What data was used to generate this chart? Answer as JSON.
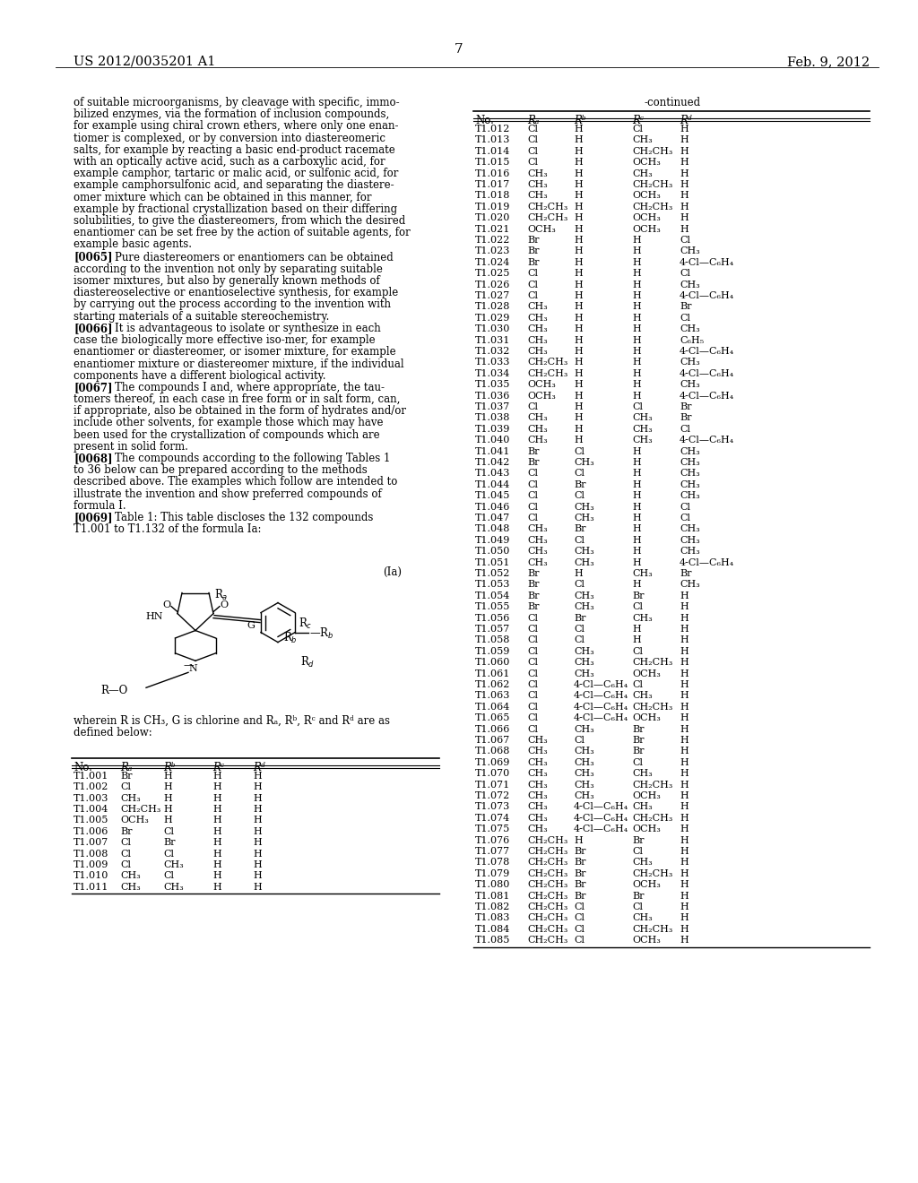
{
  "page_header_left": "US 2012/0035201 A1",
  "page_header_right": "Feb. 9, 2012",
  "page_number": "7",
  "background_color": "#ffffff",
  "body_text_lines": [
    "of suitable microorganisms, by cleavage with specific, immo-",
    "bilized enzymes, via the formation of inclusion compounds,",
    "for example using chiral crown ethers, where only one enan-",
    "tiomer is complexed, or by conversion into diastereomeric",
    "salts, for example by reacting a basic end-product racemate",
    "with an optically active acid, such as a carboxylic acid, for",
    "example camphor, tartaric or malic acid, or sulfonic acid, for",
    "example camphorsulfonic acid, and separating the diastere-",
    "omer mixture which can be obtained in this manner, for",
    "example by fractional crystallization based on their differing",
    "solubilities, to give the diastereomers, from which the desired",
    "enantiomer can be set free by the action of suitable agents, for",
    "example basic agents."
  ],
  "para_0065_lines": [
    "[0065]    Pure diastereomers or enantiomers can be obtained",
    "according to the invention not only by separating suitable",
    "isomer mixtures, but also by generally known methods of",
    "diastereoselective or enantioselective synthesis, for example",
    "by carrying out the process according to the invention with",
    "starting materials of a suitable stereochemistry."
  ],
  "para_0066_lines": [
    "[0066]    It is advantageous to isolate or synthesize in each",
    "case the biologically more effective iso-mer, for example",
    "enantiomer or diastereomer, or isomer mixture, for example",
    "enantiomer mixture or diastereomer mixture, if the individual",
    "components have a different biological activity."
  ],
  "para_0067_lines": [
    "[0067]    The compounds I and, where appropriate, the tau-",
    "tomers thereof, in each case in free form or in salt form, can,",
    "if appropriate, also be obtained in the form of hydrates and/or",
    "include other solvents, for example those which may have",
    "been used for the crystallization of compounds which are",
    "present in solid form."
  ],
  "para_0068_lines": [
    "[0068]    The compounds according to the following Tables 1",
    "to 36 below can be prepared according to the methods",
    "described above. The examples which follow are intended to",
    "illustrate the invention and show preferred compounds of",
    "formula I."
  ],
  "para_0069_lines": [
    "[0069]    Table 1: This table discloses the 132 compounds",
    "T1.001 to T1.132 of the formula Ia:"
  ],
  "formula_label": "(Ia)",
  "formula_desc_lines": [
    "wherein R is CH₃, G is chlorine and Rₐ, Rᵇ, Rᶜ and Rᵈ are as",
    "defined below:"
  ],
  "table_header": [
    "No.",
    "Rₐ",
    "Rᵇ",
    "Rᶜ",
    "Rᵈ"
  ],
  "table_continued_header": "-continued",
  "left_table_rows": [
    [
      "T1.001",
      "Br",
      "H",
      "H",
      "H"
    ],
    [
      "T1.002",
      "Cl",
      "H",
      "H",
      "H"
    ],
    [
      "T1.003",
      "CH₃",
      "H",
      "H",
      "H"
    ],
    [
      "T1.004",
      "CH₂CH₃",
      "H",
      "H",
      "H"
    ],
    [
      "T1.005",
      "OCH₃",
      "H",
      "H",
      "H"
    ],
    [
      "T1.006",
      "Br",
      "Cl",
      "H",
      "H"
    ],
    [
      "T1.007",
      "Cl",
      "Br",
      "H",
      "H"
    ],
    [
      "T1.008",
      "Cl",
      "Cl",
      "H",
      "H"
    ],
    [
      "T1.009",
      "Cl",
      "CH₃",
      "H",
      "H"
    ],
    [
      "T1.010",
      "CH₃",
      "Cl",
      "H",
      "H"
    ],
    [
      "T1.011",
      "CH₃",
      "CH₃",
      "H",
      "H"
    ]
  ],
  "right_table_rows": [
    [
      "T1.012",
      "Cl",
      "H",
      "Cl",
      "H"
    ],
    [
      "T1.013",
      "Cl",
      "H",
      "CH₃",
      "H"
    ],
    [
      "T1.014",
      "Cl",
      "H",
      "CH₂CH₃",
      "H"
    ],
    [
      "T1.015",
      "Cl",
      "H",
      "OCH₃",
      "H"
    ],
    [
      "T1.016",
      "CH₃",
      "H",
      "CH₃",
      "H"
    ],
    [
      "T1.017",
      "CH₃",
      "H",
      "CH₂CH₃",
      "H"
    ],
    [
      "T1.018",
      "CH₃",
      "H",
      "OCH₃",
      "H"
    ],
    [
      "T1.019",
      "CH₂CH₃",
      "H",
      "CH₂CH₃",
      "H"
    ],
    [
      "T1.020",
      "CH₂CH₃",
      "H",
      "OCH₃",
      "H"
    ],
    [
      "T1.021",
      "OCH₃",
      "H",
      "OCH₃",
      "H"
    ],
    [
      "T1.022",
      "Br",
      "H",
      "H",
      "Cl"
    ],
    [
      "T1.023",
      "Br",
      "H",
      "H",
      "CH₃"
    ],
    [
      "T1.024",
      "Br",
      "H",
      "H",
      "4-Cl—C₆H₄"
    ],
    [
      "T1.025",
      "Cl",
      "H",
      "H",
      "Cl"
    ],
    [
      "T1.026",
      "Cl",
      "H",
      "H",
      "CH₃"
    ],
    [
      "T1.027",
      "Cl",
      "H",
      "H",
      "4-Cl—C₆H₄"
    ],
    [
      "T1.028",
      "CH₃",
      "H",
      "H",
      "Br"
    ],
    [
      "T1.029",
      "CH₃",
      "H",
      "H",
      "Cl"
    ],
    [
      "T1.030",
      "CH₃",
      "H",
      "H",
      "CH₃"
    ],
    [
      "T1.031",
      "CH₃",
      "H",
      "H",
      "C₆H₅"
    ],
    [
      "T1.032",
      "CH₃",
      "H",
      "H",
      "4-Cl—C₆H₄"
    ],
    [
      "T1.033",
      "CH₂CH₃",
      "H",
      "H",
      "CH₃"
    ],
    [
      "T1.034",
      "CH₂CH₃",
      "H",
      "H",
      "4-Cl—C₆H₄"
    ],
    [
      "T1.035",
      "OCH₃",
      "H",
      "H",
      "CH₃"
    ],
    [
      "T1.036",
      "OCH₃",
      "H",
      "H",
      "4-Cl—C₆H₄"
    ],
    [
      "T1.037",
      "Cl",
      "H",
      "Cl",
      "Br"
    ],
    [
      "T1.038",
      "CH₃",
      "H",
      "CH₃",
      "Br"
    ],
    [
      "T1.039",
      "CH₃",
      "H",
      "CH₃",
      "Cl"
    ],
    [
      "T1.040",
      "CH₃",
      "H",
      "CH₃",
      "4-Cl—C₆H₄"
    ],
    [
      "T1.041",
      "Br",
      "Cl",
      "H",
      "CH₃"
    ],
    [
      "T1.042",
      "Br",
      "CH₃",
      "H",
      "CH₃"
    ],
    [
      "T1.043",
      "Cl",
      "Cl",
      "H",
      "CH₃"
    ],
    [
      "T1.044",
      "Cl",
      "Br",
      "H",
      "CH₃"
    ],
    [
      "T1.045",
      "Cl",
      "Cl",
      "H",
      "CH₃"
    ],
    [
      "T1.046",
      "Cl",
      "CH₃",
      "H",
      "Cl"
    ],
    [
      "T1.047",
      "Cl",
      "CH₃",
      "H",
      "Cl"
    ],
    [
      "T1.048",
      "CH₃",
      "Br",
      "H",
      "CH₃"
    ],
    [
      "T1.049",
      "CH₃",
      "Cl",
      "H",
      "CH₃"
    ],
    [
      "T1.050",
      "CH₃",
      "CH₃",
      "H",
      "CH₃"
    ],
    [
      "T1.051",
      "CH₃",
      "CH₃",
      "H",
      "4-Cl—C₆H₄"
    ],
    [
      "T1.052",
      "Br",
      "H",
      "CH₃",
      "Br"
    ],
    [
      "T1.053",
      "Br",
      "Cl",
      "H",
      "CH₃"
    ],
    [
      "T1.054",
      "Br",
      "CH₃",
      "Br",
      "H"
    ],
    [
      "T1.055",
      "Br",
      "CH₃",
      "Cl",
      "H"
    ],
    [
      "T1.056",
      "Cl",
      "Br",
      "CH₃",
      "H"
    ],
    [
      "T1.057",
      "Cl",
      "Cl",
      "H",
      "H"
    ],
    [
      "T1.058",
      "Cl",
      "Cl",
      "H",
      "H"
    ],
    [
      "T1.059",
      "Cl",
      "CH₃",
      "Cl",
      "H"
    ],
    [
      "T1.060",
      "Cl",
      "CH₃",
      "CH₂CH₃",
      "H"
    ],
    [
      "T1.061",
      "Cl",
      "CH₃",
      "OCH₃",
      "H"
    ],
    [
      "T1.062",
      "Cl",
      "4-Cl—C₆H₄",
      "Cl",
      "H"
    ],
    [
      "T1.063",
      "Cl",
      "4-Cl—C₆H₄",
      "CH₃",
      "H"
    ],
    [
      "T1.064",
      "Cl",
      "4-Cl—C₆H₄",
      "CH₂CH₃",
      "H"
    ],
    [
      "T1.065",
      "Cl",
      "4-Cl—C₆H₄",
      "OCH₃",
      "H"
    ],
    [
      "T1.066",
      "Cl",
      "CH₃",
      "Br",
      "H"
    ],
    [
      "T1.067",
      "CH₃",
      "Cl",
      "Br",
      "H"
    ],
    [
      "T1.068",
      "CH₃",
      "CH₃",
      "Br",
      "H"
    ],
    [
      "T1.069",
      "CH₃",
      "CH₃",
      "Cl",
      "H"
    ],
    [
      "T1.070",
      "CH₃",
      "CH₃",
      "CH₃",
      "H"
    ],
    [
      "T1.071",
      "CH₃",
      "CH₃",
      "CH₂CH₃",
      "H"
    ],
    [
      "T1.072",
      "CH₃",
      "CH₃",
      "OCH₃",
      "H"
    ],
    [
      "T1.073",
      "CH₃",
      "4-Cl—C₆H₄",
      "CH₃",
      "H"
    ],
    [
      "T1.074",
      "CH₃",
      "4-Cl—C₆H₄",
      "CH₂CH₃",
      "H"
    ],
    [
      "T1.075",
      "CH₃",
      "4-Cl—C₆H₄",
      "OCH₃",
      "H"
    ],
    [
      "T1.076",
      "CH₂CH₃",
      "H",
      "Br",
      "H"
    ],
    [
      "T1.077",
      "CH₂CH₃",
      "Br",
      "Cl",
      "H"
    ],
    [
      "T1.078",
      "CH₂CH₃",
      "Br",
      "CH₃",
      "H"
    ],
    [
      "T1.079",
      "CH₂CH₃",
      "Br",
      "CH₂CH₃",
      "H"
    ],
    [
      "T1.080",
      "CH₂CH₃",
      "Br",
      "OCH₃",
      "H"
    ],
    [
      "T1.081",
      "CH₂CH₃",
      "Br",
      "Br",
      "H"
    ],
    [
      "T1.082",
      "CH₂CH₃",
      "Cl",
      "Cl",
      "H"
    ],
    [
      "T1.083",
      "CH₂CH₃",
      "Cl",
      "CH₃",
      "H"
    ],
    [
      "T1.084",
      "CH₂CH₃",
      "Cl",
      "CH₂CH₃",
      "H"
    ],
    [
      "T1.085",
      "CH₂CH₃",
      "Cl",
      "OCH₃",
      "H"
    ]
  ]
}
